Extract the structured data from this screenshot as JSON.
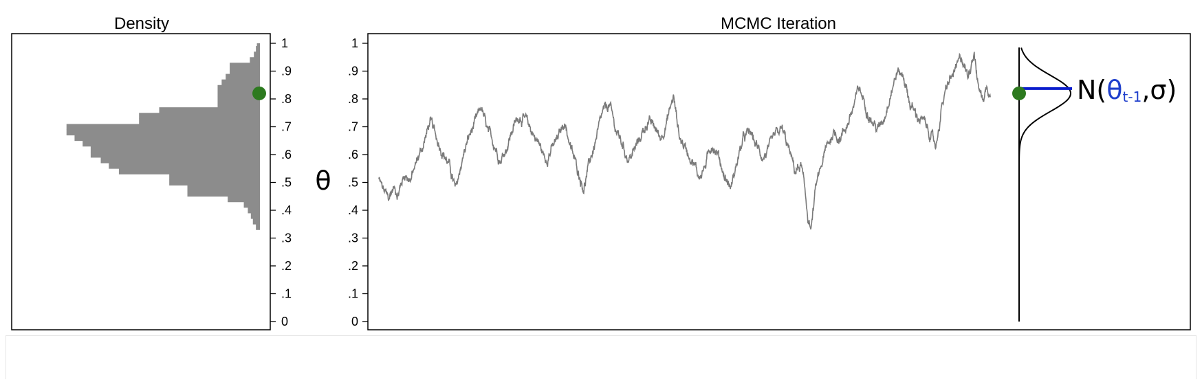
{
  "chart_data": [
    {
      "type": "histogram",
      "title": "Density",
      "orientation": "horizontal",
      "ylim": [
        0,
        1
      ],
      "yticks": [
        "0",
        ".1",
        ".2",
        ".3",
        ".4",
        ".5",
        ".6",
        ".7",
        ".8",
        ".9",
        "1"
      ],
      "bin_width": 0.02,
      "bins": [
        {
          "y0": 0.33,
          "y1": 0.35,
          "density": 0.2
        },
        {
          "y0": 0.35,
          "y1": 0.37,
          "density": 0.35
        },
        {
          "y0": 0.37,
          "y1": 0.39,
          "density": 0.45
        },
        {
          "y0": 0.39,
          "y1": 0.41,
          "density": 0.6
        },
        {
          "y0": 0.41,
          "y1": 0.43,
          "density": 0.8
        },
        {
          "y0": 0.43,
          "y1": 0.45,
          "density": 1.6
        },
        {
          "y0": 0.45,
          "y1": 0.47,
          "density": 3.6
        },
        {
          "y0": 0.47,
          "y1": 0.49,
          "density": 3.6
        },
        {
          "y0": 0.49,
          "y1": 0.51,
          "density": 4.5
        },
        {
          "y0": 0.51,
          "y1": 0.53,
          "density": 4.5
        },
        {
          "y0": 0.53,
          "y1": 0.55,
          "density": 7.0
        },
        {
          "y0": 0.55,
          "y1": 0.57,
          "density": 7.5
        },
        {
          "y0": 0.57,
          "y1": 0.59,
          "density": 7.9
        },
        {
          "y0": 0.59,
          "y1": 0.61,
          "density": 8.4
        },
        {
          "y0": 0.61,
          "y1": 0.63,
          "density": 8.4
        },
        {
          "y0": 0.63,
          "y1": 0.65,
          "density": 8.8
        },
        {
          "y0": 0.65,
          "y1": 0.67,
          "density": 9.2
        },
        {
          "y0": 0.67,
          "y1": 0.69,
          "density": 9.6
        },
        {
          "y0": 0.69,
          "y1": 0.71,
          "density": 9.6
        },
        {
          "y0": 0.71,
          "y1": 0.73,
          "density": 6.0
        },
        {
          "y0": 0.73,
          "y1": 0.75,
          "density": 6.0
        },
        {
          "y0": 0.75,
          "y1": 0.77,
          "density": 5.0
        },
        {
          "y0": 0.77,
          "y1": 0.79,
          "density": 2.1
        },
        {
          "y0": 0.79,
          "y1": 0.81,
          "density": 2.1
        },
        {
          "y0": 0.81,
          "y1": 0.83,
          "density": 2.1
        },
        {
          "y0": 0.83,
          "y1": 0.85,
          "density": 2.1
        },
        {
          "y0": 0.85,
          "y1": 0.87,
          "density": 1.9
        },
        {
          "y0": 0.87,
          "y1": 0.89,
          "density": 1.7
        },
        {
          "y0": 0.89,
          "y1": 0.91,
          "density": 1.5
        },
        {
          "y0": 0.91,
          "y1": 0.93,
          "density": 1.5
        },
        {
          "y0": 0.93,
          "y1": 0.95,
          "density": 0.5
        },
        {
          "y0": 0.95,
          "y1": 0.97,
          "density": 0.3
        },
        {
          "y0": 0.97,
          "y1": 0.99,
          "density": 0.2
        },
        {
          "y0": 0.99,
          "y1": 1.0,
          "density": 0.15
        }
      ],
      "density_max": 10,
      "current_point": {
        "y": 0.82
      },
      "bar_color": "#8c8c8c",
      "point_color": "#2d7a1f"
    },
    {
      "type": "line",
      "title": "MCMC Iteration",
      "ylabel": "θ",
      "ylim": [
        0,
        1
      ],
      "yticks": [
        "0",
        ".1",
        ".2",
        ".3",
        ".4",
        ".5",
        ".6",
        ".7",
        ".8",
        ".9",
        "1"
      ],
      "iterations": 2000,
      "series": [
        {
          "keypoints": [
            [
              0,
              0.51
            ],
            [
              15,
              0.47
            ],
            [
              30,
              0.44
            ],
            [
              45,
              0.48
            ],
            [
              60,
              0.46
            ],
            [
              80,
              0.53
            ],
            [
              100,
              0.51
            ],
            [
              120,
              0.58
            ],
            [
              140,
              0.64
            ],
            [
              160,
              0.72
            ],
            [
              180,
              0.66
            ],
            [
              200,
              0.61
            ],
            [
              220,
              0.56
            ],
            [
              240,
              0.47
            ],
            [
              260,
              0.58
            ],
            [
              280,
              0.66
            ],
            [
              300,
              0.71
            ],
            [
              320,
              0.77
            ],
            [
              340,
              0.68
            ],
            [
              360,
              0.64
            ],
            [
              380,
              0.58
            ],
            [
              400,
              0.63
            ],
            [
              420,
              0.7
            ],
            [
              440,
              0.74
            ],
            [
              460,
              0.72
            ],
            [
              480,
              0.68
            ],
            [
              500,
              0.64
            ],
            [
              520,
              0.58
            ],
            [
              540,
              0.62
            ],
            [
              560,
              0.66
            ],
            [
              580,
              0.72
            ],
            [
              600,
              0.62
            ],
            [
              620,
              0.55
            ],
            [
              640,
              0.48
            ],
            [
              660,
              0.58
            ],
            [
              680,
              0.66
            ],
            [
              700,
              0.75
            ],
            [
              720,
              0.78
            ],
            [
              740,
              0.69
            ],
            [
              760,
              0.64
            ],
            [
              780,
              0.58
            ],
            [
              800,
              0.62
            ],
            [
              820,
              0.67
            ],
            [
              840,
              0.72
            ],
            [
              860,
              0.7
            ],
            [
              880,
              0.66
            ],
            [
              900,
              0.72
            ],
            [
              920,
              0.81
            ],
            [
              940,
              0.66
            ],
            [
              960,
              0.62
            ],
            [
              980,
              0.58
            ],
            [
              1000,
              0.52
            ],
            [
              1020,
              0.56
            ],
            [
              1040,
              0.64
            ],
            [
              1060,
              0.6
            ],
            [
              1080,
              0.52
            ],
            [
              1100,
              0.48
            ],
            [
              1120,
              0.58
            ],
            [
              1140,
              0.66
            ],
            [
              1160,
              0.68
            ],
            [
              1180,
              0.63
            ],
            [
              1200,
              0.59
            ],
            [
              1220,
              0.62
            ],
            [
              1240,
              0.67
            ],
            [
              1260,
              0.69
            ],
            [
              1280,
              0.62
            ],
            [
              1300,
              0.54
            ],
            [
              1320,
              0.56
            ],
            [
              1340,
              0.38
            ],
            [
              1350,
              0.33
            ],
            [
              1365,
              0.48
            ],
            [
              1380,
              0.55
            ],
            [
              1400,
              0.63
            ],
            [
              1420,
              0.68
            ],
            [
              1440,
              0.66
            ],
            [
              1460,
              0.7
            ],
            [
              1480,
              0.76
            ],
            [
              1500,
              0.84
            ],
            [
              1520,
              0.78
            ],
            [
              1540,
              0.72
            ],
            [
              1560,
              0.69
            ],
            [
              1580,
              0.74
            ],
            [
              1600,
              0.83
            ],
            [
              1620,
              0.9
            ],
            [
              1640,
              0.88
            ],
            [
              1660,
              0.78
            ],
            [
              1680,
              0.74
            ],
            [
              1700,
              0.72
            ],
            [
              1720,
              0.68
            ],
            [
              1740,
              0.63
            ],
            [
              1760,
              0.78
            ],
            [
              1780,
              0.86
            ],
            [
              1800,
              0.9
            ],
            [
              1820,
              0.95
            ],
            [
              1840,
              0.88
            ],
            [
              1850,
              0.93
            ],
            [
              1860,
              0.98
            ],
            [
              1870,
              0.86
            ],
            [
              1885,
              0.8
            ],
            [
              1900,
              0.84
            ],
            [
              1910,
              0.82
            ]
          ],
          "color": "#7a7a7a"
        }
      ],
      "current_point": {
        "x": 1910,
        "y": 0.82
      },
      "proposal": {
        "label_prefix": "N(",
        "label_mean": "θ",
        "label_sub": "t-1",
        "label_suffix": ",σ)",
        "mean": 0.82,
        "sd": 0.065,
        "line_color": "#0a1ccc",
        "label_mean_color": "#1f3fcc"
      },
      "point_color": "#2d7a1f"
    }
  ]
}
